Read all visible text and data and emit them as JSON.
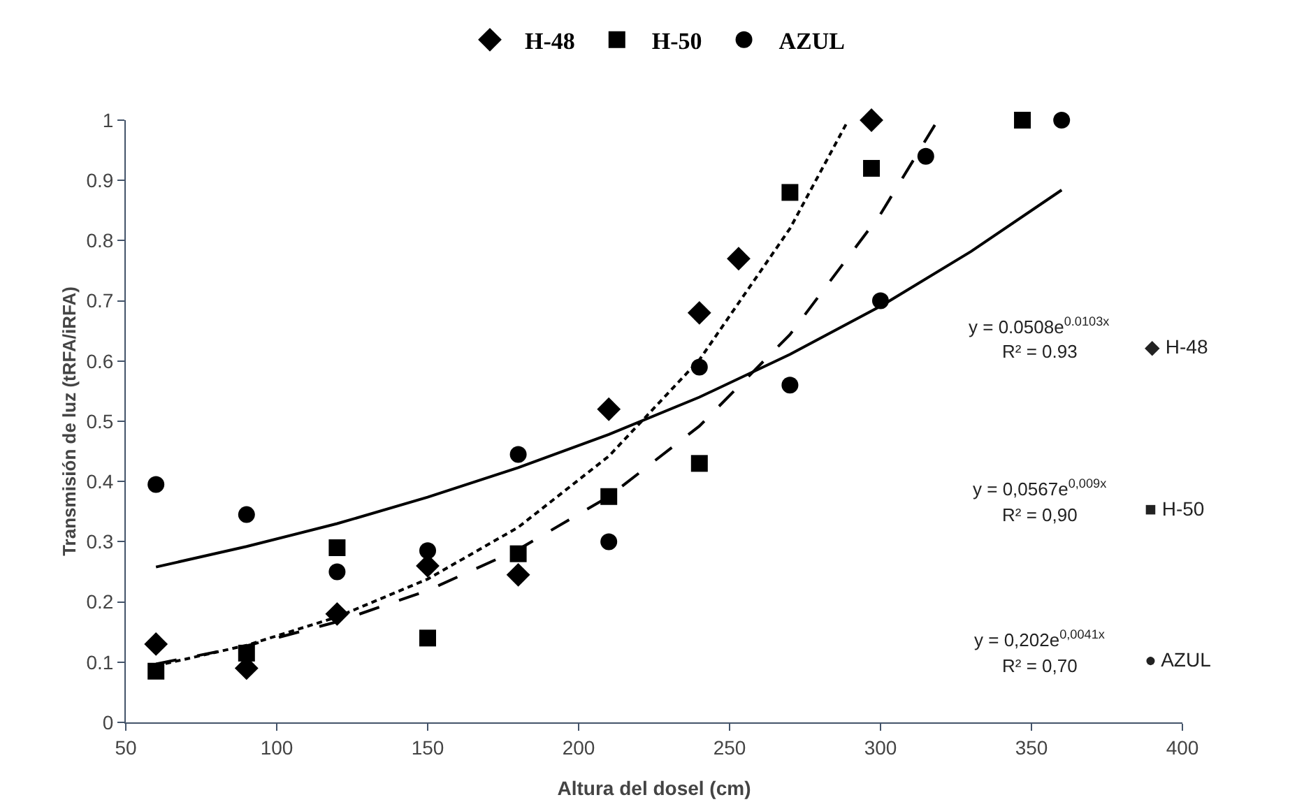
{
  "chart_data": {
    "type": "scatter",
    "xlabel": "Altura del dosel (cm)",
    "ylabel": "Transmisión de luz (tRFA/iRFA)",
    "xlim": [
      50,
      400
    ],
    "xticks": [
      50,
      100,
      150,
      200,
      250,
      300,
      350,
      400
    ],
    "ylim": [
      0,
      1
    ],
    "yticks": [
      0,
      0.1,
      0.2,
      0.3,
      0.4,
      0.5,
      0.6,
      0.7,
      0.8,
      0.9,
      1
    ],
    "grid": false,
    "legend": "top",
    "series": [
      {
        "name": "H-48",
        "marker": "diamond",
        "color": "#000000",
        "x": [
          60,
          90,
          120,
          150,
          180,
          210,
          240,
          253,
          297
        ],
        "values": [
          0.13,
          0.09,
          0.18,
          0.26,
          0.245,
          0.52,
          0.68,
          0.77,
          1.0
        ]
      },
      {
        "name": "H-50",
        "marker": "square",
        "color": "#000000",
        "x": [
          60,
          90,
          120,
          150,
          180,
          210,
          240,
          270,
          297,
          347
        ],
        "values": [
          0.085,
          0.115,
          0.29,
          0.14,
          0.28,
          0.375,
          0.43,
          0.88,
          0.92,
          1.0
        ]
      },
      {
        "name": "AZUL",
        "marker": "circle",
        "color": "#000000",
        "x": [
          60,
          90,
          120,
          150,
          180,
          210,
          240,
          270,
          300,
          315,
          360
        ],
        "values": [
          0.395,
          0.345,
          0.25,
          0.285,
          0.445,
          0.3,
          0.59,
          0.56,
          0.7,
          0.94,
          1.0
        ]
      },
      {
        "type": "line",
        "marker": "none",
        "line_style": "dotted",
        "color": "#000000",
        "x": [
          60,
          90,
          120,
          150,
          180,
          210,
          240,
          270,
          289
        ],
        "values": [
          0.094,
          0.128,
          0.175,
          0.238,
          0.324,
          0.442,
          0.602,
          0.82,
          0.997
        ]
      },
      {
        "type": "line",
        "marker": "none",
        "line_style": "dashed",
        "color": "#000000",
        "x": [
          60,
          90,
          120,
          150,
          180,
          210,
          240,
          270,
          300,
          318
        ],
        "values": [
          0.097,
          0.127,
          0.167,
          0.219,
          0.287,
          0.375,
          0.492,
          0.644,
          0.844,
          0.992
        ]
      },
      {
        "type": "line",
        "marker": "none",
        "line_style": "solid",
        "color": "#000000",
        "x": [
          60,
          90,
          120,
          150,
          180,
          210,
          240,
          270,
          300,
          330,
          360
        ],
        "values": [
          0.258,
          0.292,
          0.33,
          0.374,
          0.423,
          0.478,
          0.54,
          0.611,
          0.691,
          0.782,
          0.884
        ]
      }
    ],
    "annotations": [
      "y = 0.0508e$^{0.0103x}$",
      "R² = 0.93",
      "◆ H-48",
      "y = 0,0567e$^{0,009x}$",
      "R² = 0,90",
      "■ H-50",
      "y = 0,202e$^{0,0041x}$",
      "R² = 0,70",
      "● AZUL"
    ]
  }
}
